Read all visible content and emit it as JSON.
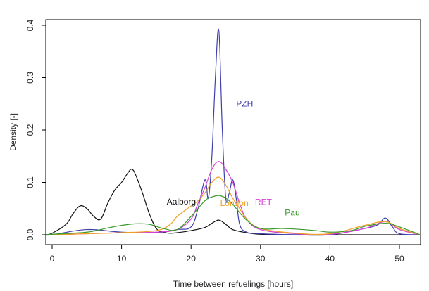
{
  "chart_data": {
    "type": "line",
    "title": "",
    "xlabel": "Time between refuelings [hours]",
    "ylabel": "Density [-]",
    "xlim": [
      0,
      53
    ],
    "ylim": [
      0,
      0.4
    ],
    "x_ticks": [
      0,
      10,
      20,
      30,
      40,
      50
    ],
    "y_ticks": [
      0.0,
      0.1,
      0.2,
      0.3,
      0.4
    ],
    "y_tick_labels": [
      "0.0",
      "0.1",
      "0.2",
      "0.3",
      "0.4"
    ],
    "grid": false,
    "legend": "none",
    "series": [
      {
        "name": "Aalborg",
        "color": "#111111",
        "x": [
          -1,
          0,
          2,
          3,
          4,
          5,
          6,
          7,
          8,
          9,
          10,
          11,
          11.5,
          12,
          13,
          14,
          15,
          16,
          17,
          18,
          20,
          22,
          23,
          24,
          25,
          26,
          28,
          30,
          35,
          40,
          45,
          48,
          50,
          53
        ],
        "y": [
          0.0,
          0.003,
          0.02,
          0.04,
          0.055,
          0.05,
          0.035,
          0.03,
          0.06,
          0.085,
          0.1,
          0.12,
          0.125,
          0.115,
          0.08,
          0.04,
          0.012,
          0.005,
          0.003,
          0.004,
          0.008,
          0.014,
          0.022,
          0.028,
          0.02,
          0.01,
          0.004,
          0.001,
          0.0,
          0.0,
          0.0,
          0.0,
          0.0,
          0.0
        ]
      },
      {
        "name": "PZH",
        "color": "#3f3fae",
        "x": [
          -1,
          0,
          5,
          10,
          15,
          18,
          20,
          21,
          22,
          22.5,
          23,
          23.5,
          24,
          24.5,
          25,
          25.5,
          26,
          26.5,
          27,
          28,
          30,
          35,
          40,
          45,
          46,
          47,
          48,
          49,
          50,
          53
        ],
        "y": [
          0.0,
          0.0,
          0.01,
          0.005,
          0.004,
          0.01,
          0.015,
          0.05,
          0.105,
          0.07,
          0.15,
          0.3,
          0.39,
          0.2,
          0.07,
          0.08,
          0.105,
          0.07,
          0.02,
          0.005,
          0.002,
          0.0,
          0.0,
          0.012,
          0.015,
          0.02,
          0.032,
          0.015,
          0.002,
          0.0
        ]
      },
      {
        "name": "RET",
        "color": "#d63fd6",
        "x": [
          -1,
          0,
          5,
          10,
          15,
          18,
          20,
          21,
          22,
          23,
          24,
          25,
          26,
          27,
          28,
          30,
          35,
          40,
          45,
          48,
          50,
          53
        ],
        "y": [
          0.0,
          0.0,
          0.002,
          0.004,
          0.005,
          0.01,
          0.03,
          0.06,
          0.09,
          0.125,
          0.14,
          0.125,
          0.1,
          0.06,
          0.03,
          0.01,
          0.002,
          0.001,
          0.012,
          0.025,
          0.01,
          0.0
        ]
      },
      {
        "name": "London",
        "color": "#f0a020",
        "x": [
          -1,
          0,
          5,
          10,
          15,
          17,
          18,
          20,
          21,
          22,
          23,
          24,
          25,
          26,
          27,
          28,
          30,
          35,
          40,
          45,
          48,
          50,
          53
        ],
        "y": [
          0.0,
          0.0,
          0.002,
          0.004,
          0.008,
          0.02,
          0.035,
          0.055,
          0.065,
          0.08,
          0.1,
          0.11,
          0.095,
          0.07,
          0.05,
          0.03,
          0.012,
          0.003,
          0.002,
          0.018,
          0.025,
          0.012,
          0.0
        ]
      },
      {
        "name": "Pau",
        "color": "#3a9a2a",
        "x": [
          -1,
          0,
          5,
          8,
          10,
          12,
          14,
          16,
          18,
          20,
          22,
          23,
          24,
          25,
          26,
          28,
          30,
          33,
          35,
          38,
          40,
          43,
          45,
          48,
          50,
          53
        ],
        "y": [
          0.0,
          0.001,
          0.005,
          0.013,
          0.018,
          0.021,
          0.02,
          0.012,
          0.01,
          0.035,
          0.065,
          0.072,
          0.075,
          0.07,
          0.058,
          0.028,
          0.012,
          0.012,
          0.011,
          0.008,
          0.005,
          0.008,
          0.016,
          0.022,
          0.015,
          0.0
        ]
      }
    ],
    "annotations": [
      {
        "text": "PZH",
        "series": "PZH",
        "x": 26.5,
        "y": 0.245,
        "color": "#3f3fae"
      },
      {
        "text": "Aalborg",
        "series": "Aalborg",
        "x": 16.5,
        "y": 0.058,
        "color": "#111111"
      },
      {
        "text": "London",
        "series": "London",
        "x": 24.2,
        "y": 0.055,
        "color": "#f0a020"
      },
      {
        "text": "RET",
        "series": "RET",
        "x": 29.2,
        "y": 0.057,
        "color": "#d63fd6"
      },
      {
        "text": "Pau",
        "series": "Pau",
        "x": 33.5,
        "y": 0.037,
        "color": "#3a9a2a"
      }
    ]
  }
}
